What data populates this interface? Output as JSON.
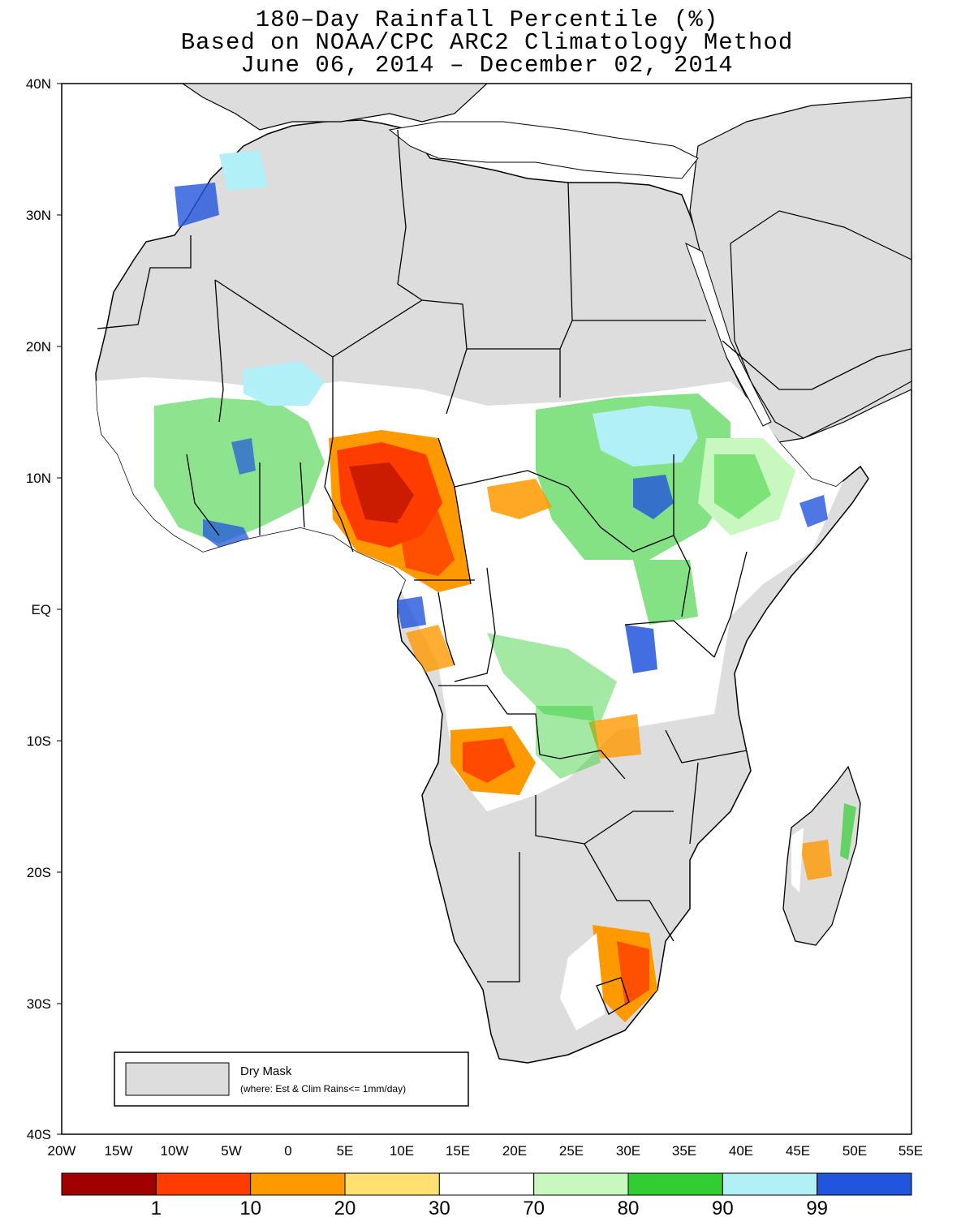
{
  "title": {
    "line1": "180–Day Rainfall Percentile (%)",
    "line2": "Based on NOAA/CPC ARC2 Climatology Method",
    "line3": "June 06, 2014 – December 02, 2014"
  },
  "axes": {
    "y_ticks": [
      "40N",
      "30N",
      "20N",
      "10N",
      "EQ",
      "10S",
      "20S",
      "30S",
      "40S"
    ],
    "x_ticks": [
      "20W",
      "15W",
      "10W",
      "5W",
      "0",
      "5E",
      "10E",
      "15E",
      "20E",
      "25E",
      "30E",
      "35E",
      "40E",
      "45E",
      "50E",
      "55E"
    ]
  },
  "legend": {
    "label": "Dry Mask",
    "note": "(where: Est & Clim Rains<= 1mm/day)",
    "mask_color": "#dddddd"
  },
  "colorbar": {
    "colors": [
      "#a00000",
      "#ff3c00",
      "#ff9900",
      "#ffe070",
      "#ffffff",
      "#c8f8c0",
      "#32cd32",
      "#b2f0f8",
      "#2255dd"
    ],
    "labels": [
      "1",
      "10",
      "20",
      "30",
      "70",
      "80",
      "90",
      "99"
    ]
  },
  "map": {
    "ocean_color": "#ffffff",
    "land_color": "#dddddd",
    "region_colors": {
      "very_dry": "#a00000",
      "dry": "#ff3c00",
      "below": "#ff9900",
      "slightly_below": "#ffe070",
      "normal": "#ffffff",
      "slightly_above": "#c8f8c0",
      "above": "#32cd32",
      "well_above": "#b2f0f8",
      "record_wet": "#2255dd"
    }
  }
}
